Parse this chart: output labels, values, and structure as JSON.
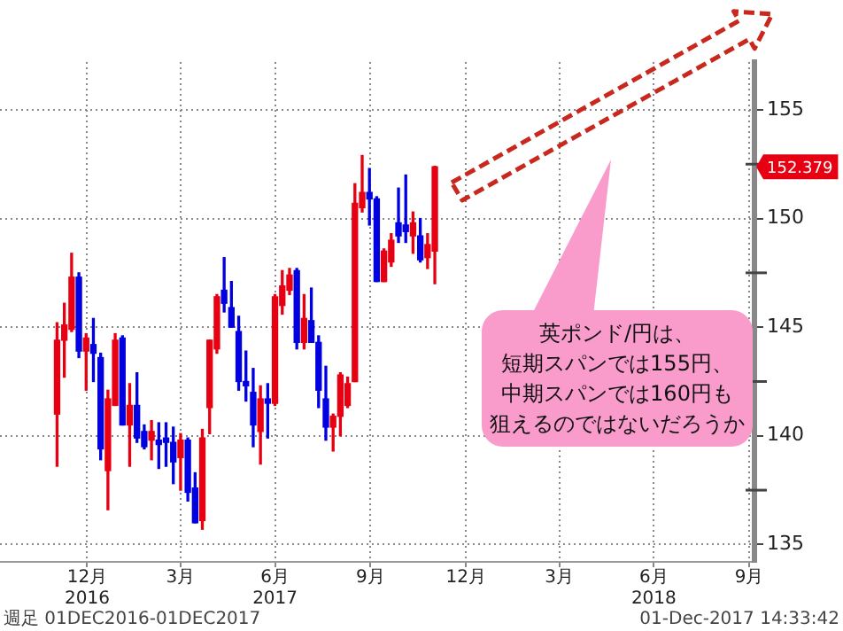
{
  "chart_data": {
    "type": "candlestick",
    "series": [
      {
        "color": "#e60012",
        "x": [
          "2016-12-02",
          "2016-12-09",
          "2016-12-16",
          "2016-12-30",
          "2017-01-20",
          "2017-01-27",
          "2017-02-10",
          "2017-03-03",
          "2017-03-31",
          "2017-04-21",
          "2017-04-28",
          "2017-05-05",
          "2017-06-16",
          "2017-06-30",
          "2017-07-07",
          "2017-07-14",
          "2017-07-28",
          "2017-08-25",
          "2017-09-01",
          "2017-09-08",
          "2017-09-15",
          "2017-09-22",
          "2017-10-13",
          "2017-10-20",
          "2017-11-10",
          "2017-11-24",
          "2017-12-01"
        ],
        "ohlc": [
          [
            141.0,
            145.2,
            138.6,
            144.4
          ],
          [
            144.4,
            146.1,
            142.7,
            145.1
          ],
          [
            144.9,
            148.4,
            144.8,
            147.3
          ],
          [
            143.9,
            144.7,
            142.1,
            144.5
          ],
          [
            138.4,
            142.1,
            136.6,
            141.7
          ],
          [
            141.4,
            144.7,
            141.4,
            144.4
          ],
          [
            140.5,
            142.4,
            138.6,
            141.4
          ],
          [
            139.8,
            140.7,
            138.9,
            140.2
          ],
          [
            139.0,
            140.1,
            137.5,
            139.8
          ],
          [
            136.1,
            140.3,
            135.7,
            139.9
          ],
          [
            141.3,
            144.4,
            140.1,
            144.4
          ],
          [
            144.0,
            146.5,
            143.8,
            146.4
          ],
          [
            140.2,
            142.3,
            138.7,
            141.7
          ],
          [
            141.5,
            146.5,
            141.4,
            146.4
          ],
          [
            146.0,
            147.6,
            145.6,
            146.9
          ],
          [
            146.7,
            147.7,
            146.5,
            147.4
          ],
          [
            144.3,
            146.5,
            144.0,
            145.4
          ],
          [
            140.4,
            141.0,
            139.3,
            140.9
          ],
          [
            140.9,
            142.9,
            140.0,
            142.8
          ],
          [
            141.4,
            142.7,
            141.3,
            142.4
          ],
          [
            142.5,
            151.6,
            142.5,
            150.7
          ],
          [
            150.5,
            152.9,
            150.3,
            151.2
          ],
          [
            147.1,
            148.6,
            147.1,
            148.5
          ],
          [
            148.0,
            149.3,
            147.8,
            149.0
          ],
          [
            149.2,
            150.3,
            148.4,
            149.8
          ],
          [
            148.2,
            149.3,
            147.7,
            148.8
          ],
          [
            148.5,
            152.4,
            147.0,
            152.379
          ]
        ]
      },
      {
        "color": "#0000e0",
        "x": [
          "2016-12-23",
          "2017-01-06",
          "2017-01-13",
          "2017-02-03",
          "2017-02-17",
          "2017-02-24",
          "2017-03-10",
          "2017-03-17",
          "2017-03-24",
          "2017-04-07",
          "2017-04-14",
          "2017-05-12",
          "2017-05-19",
          "2017-05-26",
          "2017-06-02",
          "2017-06-09",
          "2017-06-23",
          "2017-07-21",
          "2017-08-04",
          "2017-08-11",
          "2017-08-18",
          "2017-09-29",
          "2017-10-06",
          "2017-10-27",
          "2017-11-03",
          "2017-11-17"
        ],
        "ohlc": [
          [
            147.3,
            147.5,
            143.6,
            143.9
          ],
          [
            144.2,
            145.4,
            142.5,
            143.8
          ],
          [
            143.6,
            143.8,
            138.9,
            139.4
          ],
          [
            144.5,
            144.6,
            140.5,
            140.5
          ],
          [
            141.4,
            142.9,
            139.7,
            139.9
          ],
          [
            140.2,
            140.5,
            139.4,
            139.5
          ],
          [
            139.8,
            140.6,
            138.5,
            139.6
          ],
          [
            139.9,
            140.6,
            138.6,
            139.7
          ],
          [
            139.7,
            140.4,
            137.8,
            138.8
          ],
          [
            139.8,
            139.9,
            137.0,
            137.4
          ],
          [
            137.6,
            138.3,
            136.0,
            136.0
          ],
          [
            146.7,
            148.2,
            145.7,
            146.1
          ],
          [
            145.9,
            147.1,
            145.0,
            145.0
          ],
          [
            144.8,
            145.5,
            142.1,
            142.5
          ],
          [
            142.5,
            143.9,
            141.6,
            142.3
          ],
          [
            142.0,
            143.1,
            139.5,
            140.5
          ],
          [
            141.7,
            142.4,
            139.9,
            141.5
          ],
          [
            147.6,
            147.7,
            144.0,
            144.3
          ],
          [
            145.3,
            146.8,
            144.3,
            144.3
          ],
          [
            144.3,
            144.6,
            141.3,
            142.1
          ],
          [
            141.7,
            143.2,
            139.8,
            140.4
          ],
          [
            151.2,
            152.3,
            149.7,
            150.9
          ],
          [
            150.9,
            151.0,
            147.1,
            147.1
          ],
          [
            149.8,
            151.4,
            148.9,
            149.2
          ],
          [
            149.7,
            152.0,
            148.9,
            149.4
          ],
          [
            149.2,
            150.0,
            148.0,
            148.1
          ]
        ]
      }
    ],
    "xlim": [
      "2016-10-08",
      "2018-10-05"
    ],
    "xticks": [
      {
        "value": "2016-12-31",
        "label": "12月\n2016"
      },
      {
        "value": "2017-03-31",
        "label": "3月"
      },
      {
        "value": "2017-06-30",
        "label": "6月\n2017"
      },
      {
        "value": "2017-09-30",
        "label": "9月"
      },
      {
        "value": "2017-12-31",
        "label": "12月"
      },
      {
        "value": "2018-03-31",
        "label": "3月"
      },
      {
        "value": "2018-06-30",
        "label": "6月\n2018"
      },
      {
        "value": "2018-09-30",
        "label": "9月"
      }
    ],
    "ylim": [
      134.2,
      157.2
    ],
    "yticks": [
      135,
      {
        "value": 137.5,
        "label": null
      },
      140,
      {
        "value": 142.5,
        "label": null
      },
      145,
      {
        "value": 147.5,
        "label": null
      },
      150,
      {
        "value": 152.5,
        "label": null
      },
      155
    ],
    "grid": true,
    "annotations": [
      "152.379",
      "英ポンド/円は、",
      "短期スパンでは155円、",
      "中期スパンでは160円も",
      "狙えるのではないだろうか",
      "週足 01DEC2016-01DEC2017",
      "01-Dec-2017 14:33:42"
    ]
  }
}
